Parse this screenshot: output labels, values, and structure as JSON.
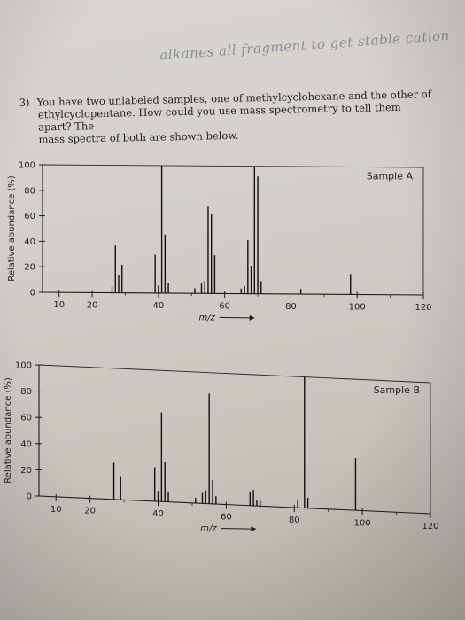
{
  "handwritten_note": "alkanes all fragment to get stable cation",
  "question": {
    "number": "3)",
    "lines": [
      "You have two unlabeled samples, one of methylcyclohexane and the other of",
      "ethylcyclopentane. How could you use mass spectrometry to tell them apart? The",
      "mass spectra of both are shown below."
    ]
  },
  "chart_data": [
    {
      "type": "bar",
      "title": "Sample A",
      "xlabel": "m/z",
      "ylabel": "Relative abundance (%)",
      "xlim": [
        5,
        120
      ],
      "ylim": [
        0,
        100
      ],
      "xticks": [
        10,
        20,
        40,
        60,
        80,
        100,
        120
      ],
      "yticks": [
        0,
        20,
        40,
        60,
        80,
        100
      ],
      "peaks": [
        {
          "x": 26,
          "y": 5
        },
        {
          "x": 27,
          "y": 37
        },
        {
          "x": 28,
          "y": 14
        },
        {
          "x": 29,
          "y": 22
        },
        {
          "x": 39,
          "y": 30
        },
        {
          "x": 40,
          "y": 6
        },
        {
          "x": 41,
          "y": 100
        },
        {
          "x": 42,
          "y": 46
        },
        {
          "x": 43,
          "y": 8
        },
        {
          "x": 51,
          "y": 4
        },
        {
          "x": 53,
          "y": 8
        },
        {
          "x": 54,
          "y": 10
        },
        {
          "x": 55,
          "y": 68
        },
        {
          "x": 56,
          "y": 62
        },
        {
          "x": 57,
          "y": 30
        },
        {
          "x": 65,
          "y": 4
        },
        {
          "x": 66,
          "y": 6
        },
        {
          "x": 67,
          "y": 42
        },
        {
          "x": 68,
          "y": 22
        },
        {
          "x": 69,
          "y": 99
        },
        {
          "x": 70,
          "y": 92
        },
        {
          "x": 71,
          "y": 10
        },
        {
          "x": 83,
          "y": 4
        },
        {
          "x": 98,
          "y": 16
        }
      ]
    },
    {
      "type": "bar",
      "title": "Sample B",
      "xlabel": "m/z",
      "ylabel": "Relative abundance (%)",
      "xlim": [
        5,
        120
      ],
      "ylim": [
        0,
        100
      ],
      "xticks": [
        10,
        20,
        40,
        60,
        80,
        100,
        120
      ],
      "yticks": [
        0,
        20,
        40,
        60,
        80,
        100
      ],
      "peaks": [
        {
          "x": 27,
          "y": 28
        },
        {
          "x": 29,
          "y": 18
        },
        {
          "x": 39,
          "y": 26
        },
        {
          "x": 40,
          "y": 8
        },
        {
          "x": 41,
          "y": 68
        },
        {
          "x": 42,
          "y": 30
        },
        {
          "x": 43,
          "y": 8
        },
        {
          "x": 51,
          "y": 4
        },
        {
          "x": 53,
          "y": 8
        },
        {
          "x": 54,
          "y": 10
        },
        {
          "x": 55,
          "y": 84
        },
        {
          "x": 56,
          "y": 18
        },
        {
          "x": 57,
          "y": 6
        },
        {
          "x": 67,
          "y": 10
        },
        {
          "x": 68,
          "y": 12
        },
        {
          "x": 69,
          "y": 4
        },
        {
          "x": 70,
          "y": 4
        },
        {
          "x": 81,
          "y": 6
        },
        {
          "x": 83,
          "y": 100
        },
        {
          "x": 84,
          "y": 8
        },
        {
          "x": 98,
          "y": 40
        }
      ]
    }
  ]
}
